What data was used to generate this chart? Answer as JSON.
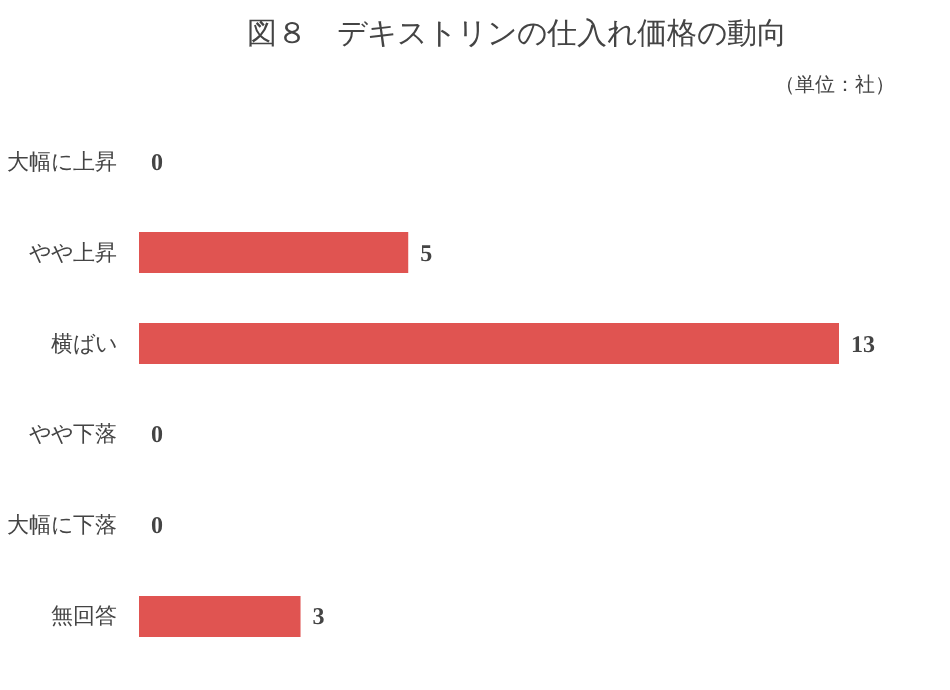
{
  "chart_data": {
    "type": "bar",
    "orientation": "horizontal",
    "title": "図８　デキストリンの仕入れ価格の動向",
    "annotations": [
      "（単位：社）"
    ],
    "categories": [
      "大幅に上昇",
      "やや上昇",
      "横ばい",
      "やや下落",
      "大幅に下落",
      "無回答"
    ],
    "values": [
      0,
      5,
      13,
      0,
      0,
      3
    ],
    "color": "#e05451",
    "data_labels": true
  }
}
